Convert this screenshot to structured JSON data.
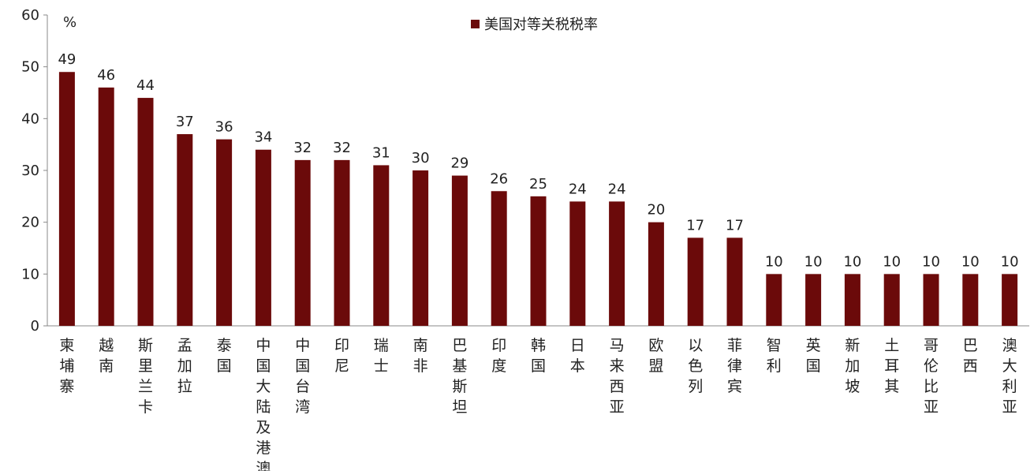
{
  "chart_data": {
    "type": "bar",
    "unit": "%",
    "categories": [
      "柬埔寨",
      "越南",
      "斯里兰卡",
      "孟加拉",
      "泰国",
      "中国大陆及港澳",
      "中国台湾",
      "印尼",
      "瑞士",
      "南非",
      "巴基斯坦",
      "印度",
      "韩国",
      "日本",
      "马来西亚",
      "欧盟",
      "以色列",
      "菲律宾",
      "智利",
      "英国",
      "新加坡",
      "土耳其",
      "哥伦比亚",
      "巴西",
      "澳大利亚"
    ],
    "series": [
      {
        "name": "美国对等关税税率",
        "color": "#6b0a0a",
        "values": [
          49,
          46,
          44,
          37,
          36,
          34,
          32,
          32,
          31,
          30,
          29,
          26,
          25,
          24,
          24,
          20,
          17,
          17,
          10,
          10,
          10,
          10,
          10,
          10,
          10
        ],
        "labels": [
          "49",
          "46",
          "44",
          "37",
          "36",
          "34",
          "32",
          "32",
          "31",
          "30",
          "29",
          "26",
          "25",
          "24",
          "24",
          "20",
          "17",
          "17",
          "10",
          "10",
          "10",
          "10",
          "10",
          "10",
          "10"
        ]
      }
    ],
    "ylim": [
      0,
      60
    ],
    "yticks": [
      "0",
      "10",
      "20",
      "30",
      "40",
      "50",
      "60"
    ],
    "grid": false,
    "legend": "top-center"
  }
}
